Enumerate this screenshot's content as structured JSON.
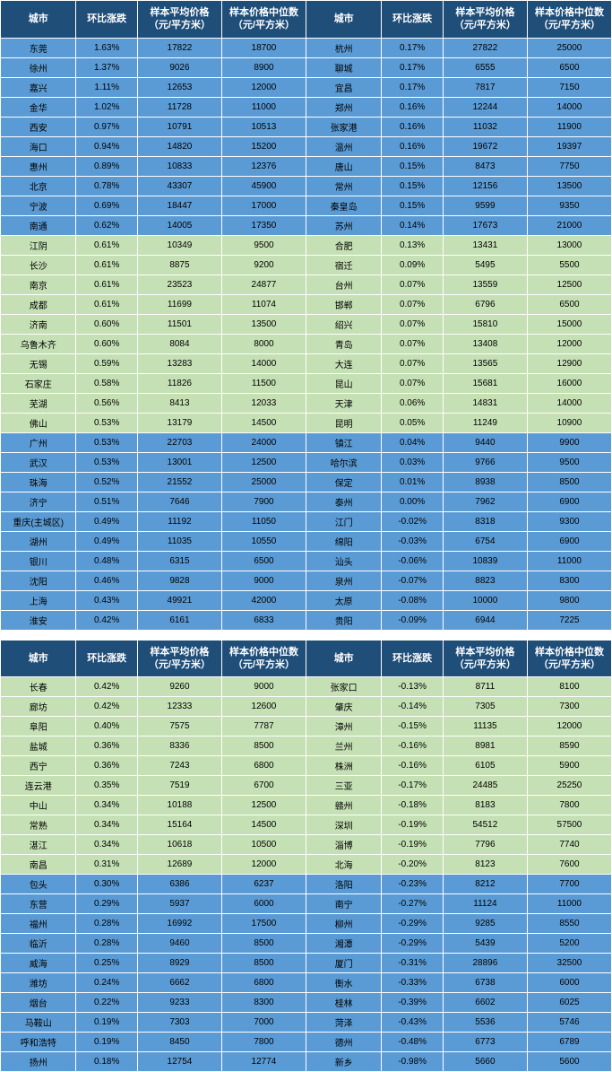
{
  "headers": {
    "city": "城市",
    "pct": "环比涨跌",
    "avg": "样本平均价格（元/平方米）",
    "med": "样本价格中位数（元/平方米）"
  },
  "colors": {
    "header_bg": "#1f4e79",
    "header_fg": "#ffffff",
    "blue_row": "#5b9bd5",
    "green_row": "#c5e0b4"
  },
  "blocks": [
    {
      "sections": [
        {
          "style": "blue",
          "rows": [
            {
              "l": [
                "东莞",
                "1.63%",
                "17822",
                "18700"
              ],
              "r": [
                "杭州",
                "0.17%",
                "27822",
                "25000"
              ]
            },
            {
              "l": [
                "徐州",
                "1.37%",
                "9026",
                "8900"
              ],
              "r": [
                "聊城",
                "0.17%",
                "6555",
                "6500"
              ]
            },
            {
              "l": [
                "嘉兴",
                "1.11%",
                "12653",
                "12000"
              ],
              "r": [
                "宜昌",
                "0.17%",
                "7817",
                "7150"
              ]
            },
            {
              "l": [
                "金华",
                "1.02%",
                "11728",
                "11000"
              ],
              "r": [
                "郑州",
                "0.16%",
                "12244",
                "14000"
              ]
            },
            {
              "l": [
                "西安",
                "0.97%",
                "10791",
                "10513"
              ],
              "r": [
                "张家港",
                "0.16%",
                "11032",
                "11900"
              ]
            },
            {
              "l": [
                "海口",
                "0.94%",
                "14820",
                "15200"
              ],
              "r": [
                "温州",
                "0.16%",
                "19672",
                "19397"
              ]
            },
            {
              "l": [
                "惠州",
                "0.89%",
                "10833",
                "12376"
              ],
              "r": [
                "唐山",
                "0.15%",
                "8473",
                "7750"
              ]
            },
            {
              "l": [
                "北京",
                "0.78%",
                "43307",
                "45900"
              ],
              "r": [
                "常州",
                "0.15%",
                "12156",
                "13500"
              ]
            },
            {
              "l": [
                "宁波",
                "0.69%",
                "18447",
                "17000"
              ],
              "r": [
                "秦皇岛",
                "0.15%",
                "9599",
                "9350"
              ]
            },
            {
              "l": [
                "南通",
                "0.62%",
                "14005",
                "17350"
              ],
              "r": [
                "苏州",
                "0.14%",
                "17673",
                "21000"
              ]
            }
          ]
        },
        {
          "style": "green",
          "rows": [
            {
              "l": [
                "江阴",
                "0.61%",
                "10349",
                "9500"
              ],
              "r": [
                "合肥",
                "0.13%",
                "13431",
                "13000"
              ]
            },
            {
              "l": [
                "长沙",
                "0.61%",
                "8875",
                "9200"
              ],
              "r": [
                "宿迁",
                "0.09%",
                "5495",
                "5500"
              ]
            },
            {
              "l": [
                "南京",
                "0.61%",
                "23523",
                "24877"
              ],
              "r": [
                "台州",
                "0.07%",
                "13559",
                "12500"
              ]
            },
            {
              "l": [
                "成都",
                "0.61%",
                "11699",
                "11074"
              ],
              "r": [
                "邯郸",
                "0.07%",
                "6796",
                "6500"
              ]
            },
            {
              "l": [
                "济南",
                "0.60%",
                "11501",
                "13500"
              ],
              "r": [
                "绍兴",
                "0.07%",
                "15810",
                "15000"
              ]
            },
            {
              "l": [
                "乌鲁木齐",
                "0.60%",
                "8084",
                "8000"
              ],
              "r": [
                "青岛",
                "0.07%",
                "13408",
                "12000"
              ]
            },
            {
              "l": [
                "无锡",
                "0.59%",
                "13283",
                "14000"
              ],
              "r": [
                "大连",
                "0.07%",
                "13565",
                "12900"
              ]
            },
            {
              "l": [
                "石家庄",
                "0.58%",
                "11826",
                "11500"
              ],
              "r": [
                "昆山",
                "0.07%",
                "15681",
                "16000"
              ]
            },
            {
              "l": [
                "芜湖",
                "0.56%",
                "8413",
                "12033"
              ],
              "r": [
                "天津",
                "0.06%",
                "14831",
                "14000"
              ]
            },
            {
              "l": [
                "佛山",
                "0.53%",
                "13179",
                "14500"
              ],
              "r": [
                "昆明",
                "0.05%",
                "11249",
                "10900"
              ]
            }
          ]
        },
        {
          "style": "blue",
          "rows": [
            {
              "l": [
                "广州",
                "0.53%",
                "22703",
                "24000"
              ],
              "r": [
                "镇江",
                "0.04%",
                "9440",
                "9900"
              ]
            },
            {
              "l": [
                "武汉",
                "0.53%",
                "13001",
                "12500"
              ],
              "r": [
                "哈尔滨",
                "0.03%",
                "9766",
                "9500"
              ]
            },
            {
              "l": [
                "珠海",
                "0.52%",
                "21552",
                "25000"
              ],
              "r": [
                "保定",
                "0.01%",
                "8938",
                "8500"
              ]
            },
            {
              "l": [
                "济宁",
                "0.51%",
                "7646",
                "7900"
              ],
              "r": [
                "泰州",
                "0.00%",
                "7962",
                "6900"
              ]
            },
            {
              "l": [
                "重庆(主城区)",
                "0.49%",
                "11192",
                "11050"
              ],
              "r": [
                "江门",
                "-0.02%",
                "8318",
                "9300"
              ]
            },
            {
              "l": [
                "湖州",
                "0.49%",
                "11035",
                "10550"
              ],
              "r": [
                "绵阳",
                "-0.03%",
                "6754",
                "6900"
              ]
            },
            {
              "l": [
                "银川",
                "0.48%",
                "6315",
                "6500"
              ],
              "r": [
                "汕头",
                "-0.06%",
                "10839",
                "11000"
              ]
            },
            {
              "l": [
                "沈阳",
                "0.46%",
                "9828",
                "9000"
              ],
              "r": [
                "泉州",
                "-0.07%",
                "8823",
                "8300"
              ]
            },
            {
              "l": [
                "上海",
                "0.43%",
                "49921",
                "42000"
              ],
              "r": [
                "太原",
                "-0.08%",
                "10000",
                "9800"
              ]
            },
            {
              "l": [
                "淮安",
                "0.42%",
                "6161",
                "6833"
              ],
              "r": [
                "贵阳",
                "-0.09%",
                "6944",
                "7225"
              ]
            }
          ]
        }
      ]
    },
    {
      "sections": [
        {
          "style": "green",
          "rows": [
            {
              "l": [
                "长春",
                "0.42%",
                "9260",
                "9000"
              ],
              "r": [
                "张家口",
                "-0.13%",
                "8711",
                "8100"
              ]
            },
            {
              "l": [
                "廊坊",
                "0.42%",
                "12333",
                "12600"
              ],
              "r": [
                "肇庆",
                "-0.14%",
                "7305",
                "7300"
              ]
            },
            {
              "l": [
                "阜阳",
                "0.40%",
                "7575",
                "7787"
              ],
              "r": [
                "漳州",
                "-0.15%",
                "11135",
                "12000"
              ]
            },
            {
              "l": [
                "盐城",
                "0.36%",
                "8336",
                "8500"
              ],
              "r": [
                "兰州",
                "-0.16%",
                "8981",
                "8590"
              ]
            },
            {
              "l": [
                "西宁",
                "0.36%",
                "7243",
                "6800"
              ],
              "r": [
                "株洲",
                "-0.16%",
                "6105",
                "5900"
              ]
            },
            {
              "l": [
                "连云港",
                "0.35%",
                "7519",
                "6700"
              ],
              "r": [
                "三亚",
                "-0.17%",
                "24485",
                "25250"
              ]
            },
            {
              "l": [
                "中山",
                "0.34%",
                "10188",
                "12500"
              ],
              "r": [
                "赣州",
                "-0.18%",
                "8183",
                "7800"
              ]
            },
            {
              "l": [
                "常熟",
                "0.34%",
                "15164",
                "14500"
              ],
              "r": [
                "深圳",
                "-0.19%",
                "54512",
                "57500"
              ]
            },
            {
              "l": [
                "湛江",
                "0.34%",
                "10618",
                "10500"
              ],
              "r": [
                "淄博",
                "-0.19%",
                "7796",
                "7740"
              ]
            },
            {
              "l": [
                "南昌",
                "0.31%",
                "12689",
                "12000"
              ],
              "r": [
                "北海",
                "-0.20%",
                "8123",
                "7600"
              ]
            }
          ]
        },
        {
          "style": "blue",
          "rows": [
            {
              "l": [
                "包头",
                "0.30%",
                "6386",
                "6237"
              ],
              "r": [
                "洛阳",
                "-0.23%",
                "8212",
                "7700"
              ]
            },
            {
              "l": [
                "东营",
                "0.29%",
                "5937",
                "6000"
              ],
              "r": [
                "南宁",
                "-0.27%",
                "11124",
                "11000"
              ]
            },
            {
              "l": [
                "福州",
                "0.28%",
                "16992",
                "17500"
              ],
              "r": [
                "柳州",
                "-0.29%",
                "9285",
                "8550"
              ]
            },
            {
              "l": [
                "临沂",
                "0.28%",
                "9460",
                "8500"
              ],
              "r": [
                "湘潭",
                "-0.29%",
                "5439",
                "5200"
              ]
            },
            {
              "l": [
                "威海",
                "0.25%",
                "8929",
                "8500"
              ],
              "r": [
                "厦门",
                "-0.31%",
                "28896",
                "32500"
              ]
            },
            {
              "l": [
                "潍坊",
                "0.24%",
                "6662",
                "6800"
              ],
              "r": [
                "衡水",
                "-0.33%",
                "6738",
                "6000"
              ]
            },
            {
              "l": [
                "烟台",
                "0.22%",
                "9233",
                "8300"
              ],
              "r": [
                "桂林",
                "-0.39%",
                "6602",
                "6025"
              ]
            },
            {
              "l": [
                "马鞍山",
                "0.19%",
                "7303",
                "7000"
              ],
              "r": [
                "菏泽",
                "-0.43%",
                "5536",
                "5746"
              ]
            },
            {
              "l": [
                "呼和浩特",
                "0.19%",
                "8450",
                "7800"
              ],
              "r": [
                "德州",
                "-0.48%",
                "6773",
                "6789"
              ]
            },
            {
              "l": [
                "扬州",
                "0.18%",
                "12754",
                "12774"
              ],
              "r": [
                "新乡",
                "-0.98%",
                "5660",
                "5600"
              ]
            }
          ]
        }
      ]
    }
  ]
}
